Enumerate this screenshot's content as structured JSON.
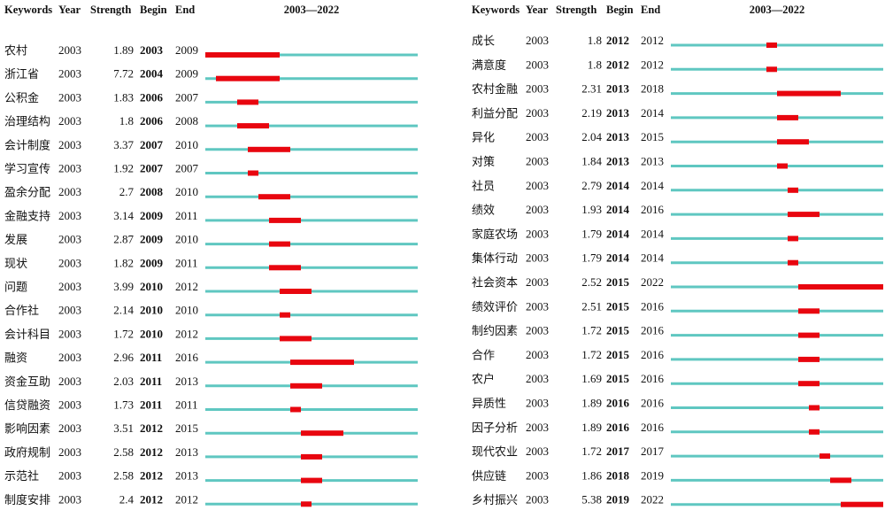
{
  "header": [
    "Keywords",
    "Year",
    "Strength",
    "Begin",
    "End"
  ],
  "range_label": "2003—2022",
  "range": [
    2003,
    2022
  ],
  "tables": [
    {
      "rows": [
        [
          "农村",
          2003,
          1.89,
          2003,
          2009
        ],
        [
          "浙江省",
          2003,
          7.72,
          2004,
          2009
        ],
        [
          "公积金",
          2003,
          1.83,
          2006,
          2007
        ],
        [
          "治理结构",
          2003,
          1.8,
          2006,
          2008
        ],
        [
          "会计制度",
          2003,
          3.37,
          2007,
          2010
        ],
        [
          "学习宣传",
          2003,
          1.92,
          2007,
          2007
        ],
        [
          "盈余分配",
          2003,
          2.7,
          2008,
          2010
        ],
        [
          "金融支持",
          2003,
          3.14,
          2009,
          2011
        ],
        [
          "发展",
          2003,
          2.87,
          2009,
          2010
        ],
        [
          "现状",
          2003,
          1.82,
          2009,
          2011
        ],
        [
          "问题",
          2003,
          3.99,
          2010,
          2012
        ],
        [
          "合作社",
          2003,
          2.14,
          2010,
          2010
        ],
        [
          "会计科目",
          2003,
          1.72,
          2010,
          2012
        ],
        [
          "融资",
          2003,
          2.96,
          2011,
          2016
        ],
        [
          "资金互助",
          2003,
          2.03,
          2011,
          2013
        ],
        [
          "信贷融资",
          2003,
          1.73,
          2011,
          2011
        ],
        [
          "影响因素",
          2003,
          3.51,
          2012,
          2015
        ],
        [
          "政府规制",
          2003,
          2.58,
          2012,
          2013
        ],
        [
          "示范社",
          2003,
          2.58,
          2012,
          2013
        ],
        [
          "制度安排",
          2003,
          2.4,
          2012,
          2012
        ]
      ]
    },
    {
      "rows": [
        [
          "成长",
          2003,
          1.8,
          2012,
          2012
        ],
        [
          "满意度",
          2003,
          1.8,
          2012,
          2012
        ],
        [
          "农村金融",
          2003,
          2.31,
          2013,
          2018
        ],
        [
          "利益分配",
          2003,
          2.19,
          2013,
          2014
        ],
        [
          "异化",
          2003,
          2.04,
          2013,
          2015
        ],
        [
          "对策",
          2003,
          1.84,
          2013,
          2013
        ],
        [
          "社员",
          2003,
          2.79,
          2014,
          2014
        ],
        [
          "绩效",
          2003,
          1.93,
          2014,
          2016
        ],
        [
          "家庭农场",
          2003,
          1.79,
          2014,
          2014
        ],
        [
          "集体行动",
          2003,
          1.79,
          2014,
          2014
        ],
        [
          "社会资本",
          2003,
          2.52,
          2015,
          2022
        ],
        [
          "绩效评价",
          2003,
          2.51,
          2015,
          2016
        ],
        [
          "制约因素",
          2003,
          1.72,
          2015,
          2016
        ],
        [
          "合作",
          2003,
          1.72,
          2015,
          2016
        ],
        [
          "农户",
          2003,
          1.69,
          2015,
          2016
        ],
        [
          "异质性",
          2003,
          1.89,
          2016,
          2016
        ],
        [
          "因子分析",
          2003,
          1.89,
          2016,
          2016
        ],
        [
          "现代农业",
          2003,
          1.72,
          2017,
          2017
        ],
        [
          "供应链",
          2003,
          1.86,
          2018,
          2019
        ],
        [
          "乡村振兴",
          2003,
          5.38,
          2019,
          2022
        ]
      ]
    }
  ]
}
